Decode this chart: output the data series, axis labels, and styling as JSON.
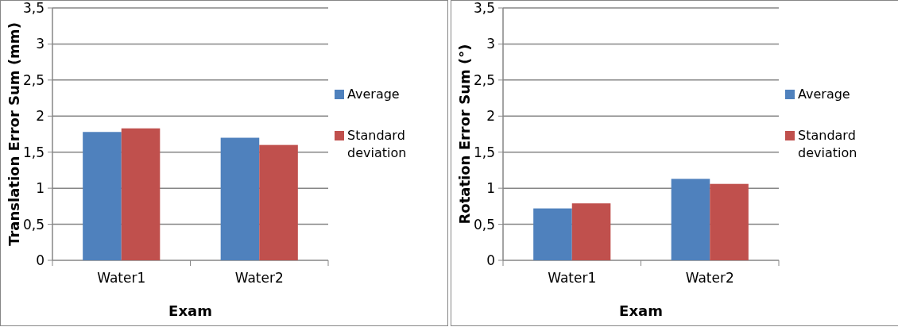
{
  "chart_data": [
    {
      "type": "bar",
      "xlabel": "Exam",
      "ylabel": "Translation Error Sum (mm)",
      "categories": [
        "Water1",
        "Water2"
      ],
      "series": [
        {
          "name": "Average",
          "color": "#4f81bd",
          "values": [
            1.78,
            1.7
          ]
        },
        {
          "name": "Standard deviation",
          "color": "#c0504d",
          "values": [
            1.83,
            1.6
          ]
        }
      ],
      "ylim": [
        0,
        3.5
      ],
      "yticks": [
        0,
        {
          "value": 0.5,
          "label": "0,5"
        },
        1,
        {
          "value": 1.5,
          "label": "1,5"
        },
        2,
        {
          "value": 2.5,
          "label": "2,5"
        },
        3,
        {
          "value": 3.5,
          "label": "3,5"
        }
      ],
      "grid": "y",
      "legend": "right"
    },
    {
      "type": "bar",
      "xlabel": "Exam",
      "ylabel": "Rotation Error Sum (°)",
      "categories": [
        "Water1",
        "Water2"
      ],
      "series": [
        {
          "name": "Average",
          "color": "#4f81bd",
          "values": [
            0.72,
            1.13
          ]
        },
        {
          "name": "Standard deviation",
          "color": "#c0504d",
          "values": [
            0.79,
            1.06
          ]
        }
      ],
      "ylim": [
        0,
        3.5
      ],
      "yticks": [
        0,
        {
          "value": 0.5,
          "label": "0,5"
        },
        1,
        {
          "value": 1.5,
          "label": "1,5"
        },
        2,
        {
          "value": 2.5,
          "label": "2,5"
        },
        3,
        {
          "value": 3.5,
          "label": "3,5"
        }
      ],
      "grid": "y",
      "legend": "right"
    }
  ]
}
